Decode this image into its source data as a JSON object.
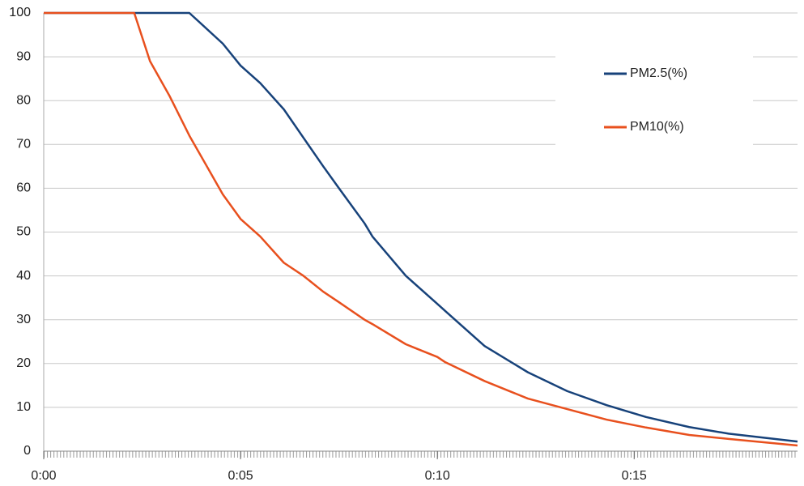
{
  "chart_data": {
    "type": "line",
    "x": [
      0,
      2.3,
      2.7,
      3.2,
      3.7,
      4.55,
      5,
      5.5,
      6.1,
      6.6,
      7.1,
      7.5,
      8.15,
      8.35,
      9.2,
      10,
      10.2,
      11.2,
      12.3,
      13.3,
      14.3,
      15.3,
      16.4,
      17.4,
      19.15
    ],
    "series": [
      {
        "name": "PM2.5(%)",
        "color": "#17427a",
        "values": [
          100,
          100,
          100,
          100,
          100,
          93,
          88,
          84,
          78,
          71.5,
          65,
          60,
          52,
          49,
          40,
          33.6,
          32,
          24,
          18,
          13.7,
          10.5,
          7.8,
          5.5,
          4,
          2.2
        ]
      },
      {
        "name": "PM10(%)",
        "color": "#e8501e",
        "values": [
          100,
          100,
          89,
          81,
          72,
          58.6,
          53,
          49,
          43,
          40,
          36.4,
          34,
          30,
          29,
          24.4,
          21.5,
          20.3,
          16,
          12,
          9.6,
          7.2,
          5.4,
          3.7,
          2.8,
          1.3
        ]
      }
    ],
    "xlim": [
      0,
      19.15
    ],
    "xticks": [
      {
        "value": 0,
        "label": "0:00"
      },
      {
        "value": 5,
        "label": "0:05"
      },
      {
        "value": 10,
        "label": "0:10"
      },
      {
        "value": 15,
        "label": "0:15"
      }
    ],
    "ylim": [
      0,
      100
    ],
    "yticks": [
      0,
      10,
      20,
      30,
      40,
      50,
      60,
      70,
      80,
      90,
      100
    ],
    "grid": true,
    "legend": "upper right"
  }
}
